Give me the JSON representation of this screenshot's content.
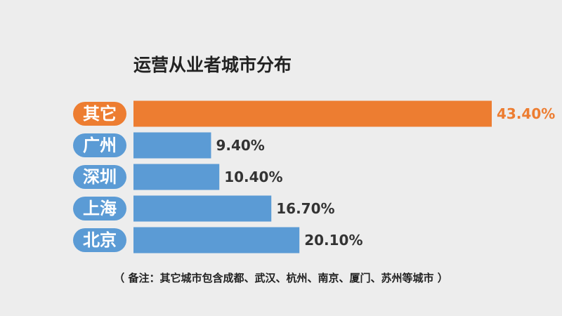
{
  "chart_data": {
    "type": "bar",
    "orientation": "horizontal",
    "title": "运营从业者城市分布",
    "categories": [
      "其它",
      "广州",
      "深圳",
      "上海",
      "北京"
    ],
    "values": [
      43.4,
      9.4,
      10.4,
      16.7,
      20.1
    ],
    "value_labels": [
      "43.40%",
      "9.40%",
      "10.40%",
      "16.70%",
      "20.10%"
    ],
    "unit": "%",
    "xlabel": "",
    "ylabel": "",
    "xlim": [
      0,
      43.4
    ],
    "grid": false,
    "legend": "none",
    "colors": {
      "highlight": "#ed7d31",
      "default": "#5b9bd5",
      "value_text": "#333333",
      "highlight_text": "#ed7d31",
      "background": "#ededed"
    },
    "highlighted_category": "其它",
    "footnote": "（ 备注：其它城市包含成都、武汉、杭州、南京、厦门、苏州等城市 ）"
  }
}
